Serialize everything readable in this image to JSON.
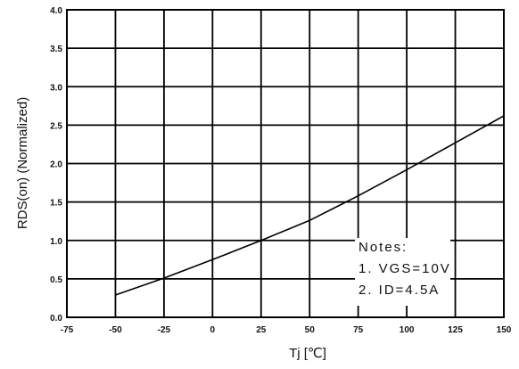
{
  "chart_data": {
    "type": "line",
    "xlabel": "Tj [℃]",
    "ylabel": "RDS(on) (Normalized)",
    "xlim": [
      -75,
      150
    ],
    "ylim": [
      0,
      4.0
    ],
    "x_ticks": [
      "-75",
      "-50",
      "-25",
      "0",
      "25",
      "50",
      "75",
      "100",
      "125",
      "150"
    ],
    "y_ticks": [
      "0.0",
      "0.5",
      "1.0",
      "1.5",
      "2.0",
      "2.5",
      "3.0",
      "3.5",
      "4.0"
    ],
    "grid": true,
    "series": [
      {
        "x": [
          -50,
          -25,
          0,
          25,
          50,
          75,
          100,
          125,
          150
        ],
        "y": [
          0.29,
          0.51,
          0.75,
          1.0,
          1.26,
          1.58,
          1.92,
          2.27,
          2.62
        ]
      }
    ],
    "notes": {
      "title": "Notes:",
      "line1": "1. VGS=10V",
      "line2": "2. ID=4.5A"
    }
  }
}
